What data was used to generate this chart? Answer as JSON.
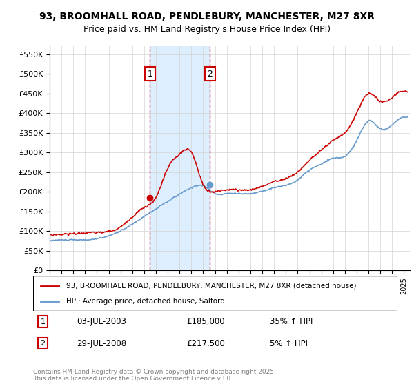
{
  "title_line1": "93, BROOMHALL ROAD, PENDLEBURY, MANCHESTER, M27 8XR",
  "title_line2": "Price paid vs. HM Land Registry's House Price Index (HPI)",
  "ylabel_ticks": [
    "£0",
    "£50K",
    "£100K",
    "£150K",
    "£200K",
    "£250K",
    "£300K",
    "£350K",
    "£400K",
    "£450K",
    "£500K",
    "£550K"
  ],
  "ytick_values": [
    0,
    50000,
    100000,
    150000,
    200000,
    250000,
    300000,
    350000,
    400000,
    450000,
    500000,
    550000
  ],
  "ylim": [
    0,
    570000
  ],
  "xlim_start": 1995.0,
  "xlim_end": 2025.5,
  "legend_line1": "93, BROOMHALL ROAD, PENDLEBURY, MANCHESTER, M27 8XR (detached house)",
  "legend_line2": "HPI: Average price, detached house, Salford",
  "transaction1_date": "03-JUL-2003",
  "transaction1_price": "£185,000",
  "transaction1_hpi": "35% ↑ HPI",
  "transaction1_year": 2003.5,
  "transaction2_date": "29-JUL-2008",
  "transaction2_price": "£217,500",
  "transaction2_hpi": "5% ↑ HPI",
  "transaction2_year": 2008.58,
  "red_color": "#cc0000",
  "blue_color": "#6699cc",
  "shade_color": "#ddeeff",
  "footnote": "Contains HM Land Registry data © Crown copyright and database right 2025.\nThis data is licensed under the Open Government Licence v3.0."
}
